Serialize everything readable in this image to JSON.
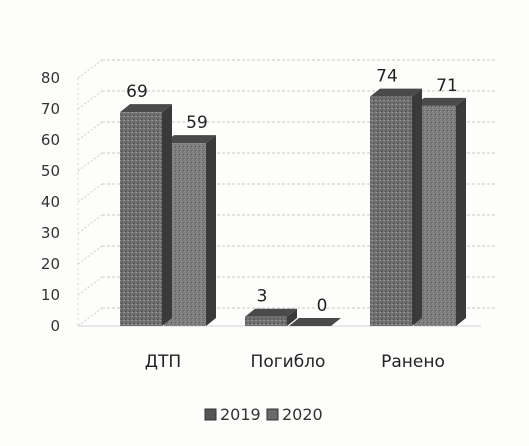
{
  "chart_data": {
    "type": "bar",
    "style": "3d-clustered",
    "categories": [
      "ДТП",
      "Погибло",
      "Ранено"
    ],
    "series": [
      {
        "name": "2019",
        "values": [
          69,
          3,
          74
        ],
        "color": "#6e6e6e"
      },
      {
        "name": "2020",
        "values": [
          59,
          0,
          71
        ],
        "color": "#7a7a7a"
      }
    ],
    "ylim": [
      0,
      80
    ],
    "yticks": [
      0,
      10,
      20,
      30,
      40,
      50,
      60,
      70,
      80
    ],
    "grid": true,
    "legend": "bottom",
    "title": "",
    "xlabel": "",
    "ylabel": ""
  }
}
